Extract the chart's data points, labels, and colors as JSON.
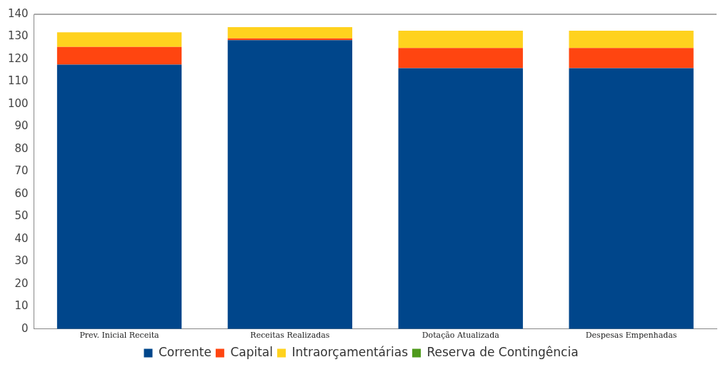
{
  "chart_data": {
    "type": "bar",
    "stacked": true,
    "categories": [
      "Prev. Inicial Receita",
      "Receitas Realizadas",
      "Dotação Atualizada",
      "Despesas Empenhadas"
    ],
    "series": [
      {
        "name": "Corrente",
        "color": "#00468b",
        "values": [
          117.6,
          128.5,
          116,
          116
        ]
      },
      {
        "name": "Capital",
        "color": "#ff4510",
        "values": [
          7.9,
          0.8,
          9,
          9
        ]
      },
      {
        "name": "Intraorçamentárias",
        "color": "#ffd21e",
        "values": [
          6.5,
          5,
          7.7,
          7.7
        ]
      },
      {
        "name": "Reserva de Contingência",
        "color": "#4e9a1c",
        "values": [
          0,
          0,
          0,
          0
        ]
      }
    ],
    "ylim": [
      0,
      140
    ],
    "yticks": [
      0,
      10,
      20,
      30,
      40,
      50,
      60,
      70,
      80,
      90,
      100,
      110,
      120,
      130,
      140
    ],
    "grid": false,
    "legend": "bottom"
  }
}
